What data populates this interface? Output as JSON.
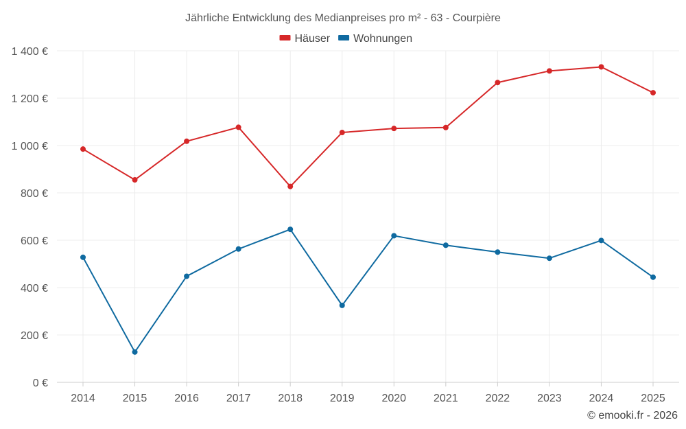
{
  "chart_data": {
    "type": "line",
    "title": "Jährliche Entwicklung des Medianpreises pro m² - 63 - Courpière",
    "xlabel": "",
    "ylabel": "",
    "categories": [
      "2014",
      "2015",
      "2016",
      "2017",
      "2018",
      "2019",
      "2020",
      "2021",
      "2022",
      "2023",
      "2024",
      "2025"
    ],
    "series": [
      {
        "name": "Häuser",
        "color": "#d62728",
        "values": [
          985,
          855,
          1018,
          1077,
          827,
          1055,
          1072,
          1076,
          1266,
          1315,
          1332,
          1223
        ]
      },
      {
        "name": "Wohnungen",
        "color": "#0f6aa0",
        "values": [
          528,
          128,
          448,
          563,
          646,
          325,
          619,
          579,
          550,
          524,
          599,
          444
        ]
      }
    ],
    "ylim": [
      0,
      1400
    ],
    "yticks": [
      0,
      200,
      400,
      600,
      800,
      1000,
      1200,
      1400
    ],
    "ytick_labels": [
      "0 €",
      "200 €",
      "400 €",
      "600 €",
      "800 €",
      "1 000 €",
      "1 200 €",
      "1 400 €"
    ],
    "grid": true,
    "legend_position": "top-center"
  },
  "credit": "© emooki.fr - 2026"
}
